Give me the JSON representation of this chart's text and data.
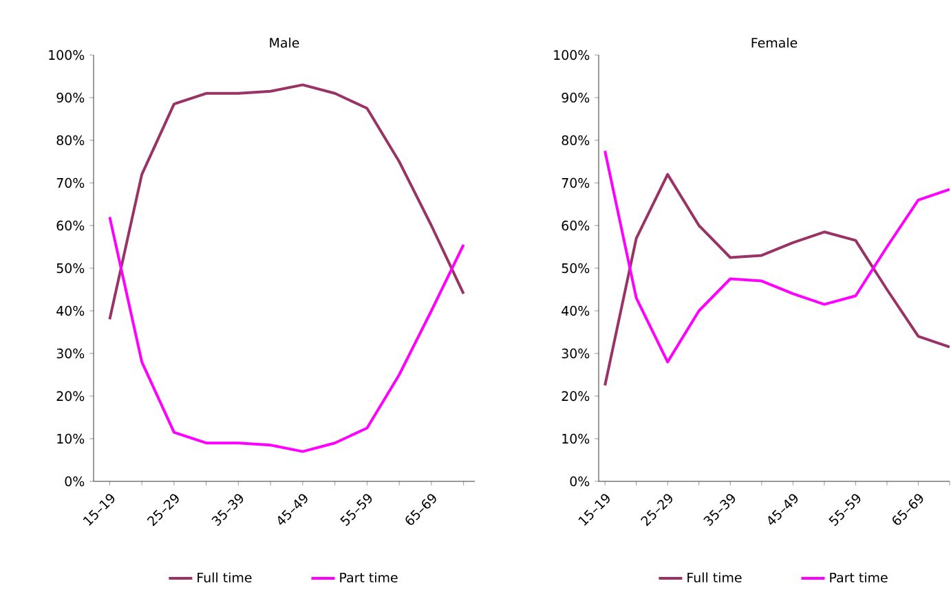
{
  "chart_data": [
    {
      "type": "line",
      "title": "Male",
      "categories": [
        "15–19",
        null,
        "25–29",
        null,
        "35–39",
        null,
        "45–49",
        null,
        "55–59",
        null,
        "65–69",
        null
      ],
      "series": [
        {
          "name": "Full time",
          "color": "#993366",
          "values": [
            38,
            72,
            88.5,
            91,
            91,
            91.5,
            93,
            91,
            87.5,
            75,
            60,
            44
          ]
        },
        {
          "name": "Part time",
          "color": "#ff00ff",
          "values": [
            62,
            28,
            11.5,
            9,
            9,
            8.5,
            7,
            9,
            12.5,
            25,
            40,
            55.5
          ]
        }
      ],
      "ylim": [
        0,
        100
      ],
      "yticks": [
        {
          "value": 0,
          "label": "0%"
        },
        {
          "value": 10,
          "label": "10%"
        },
        {
          "value": 20,
          "label": "20%"
        },
        {
          "value": 30,
          "label": "30%"
        },
        {
          "value": 40,
          "label": "40%"
        },
        {
          "value": 50,
          "label": "50%"
        },
        {
          "value": 60,
          "label": "60%"
        },
        {
          "value": 70,
          "label": "70%"
        },
        {
          "value": 80,
          "label": "80%"
        },
        {
          "value": 90,
          "label": "90%"
        },
        {
          "value": 100,
          "label": "100%"
        }
      ],
      "legend": "bottom"
    },
    {
      "type": "line",
      "title": "Female",
      "categories": [
        "15–19",
        null,
        "25–29",
        null,
        "35–39",
        null,
        "45–49",
        null,
        "55–59",
        null,
        "65–69",
        null
      ],
      "series": [
        {
          "name": "Full time",
          "color": "#993366",
          "values": [
            22.5,
            57,
            72,
            60,
            52.5,
            53,
            56,
            58.5,
            56.5,
            45,
            34,
            31.5
          ]
        },
        {
          "name": "Part time",
          "color": "#ff00ff",
          "values": [
            77.5,
            43,
            28,
            40,
            47.5,
            47,
            44,
            41.5,
            43.5,
            55,
            66,
            68.5
          ]
        }
      ],
      "ylim": [
        0,
        100
      ],
      "yticks": [
        {
          "value": 0,
          "label": "0%"
        },
        {
          "value": 10,
          "label": "10%"
        },
        {
          "value": 20,
          "label": "20%"
        },
        {
          "value": 30,
          "label": "30%"
        },
        {
          "value": 40,
          "label": "40%"
        },
        {
          "value": 50,
          "label": "50%"
        },
        {
          "value": 60,
          "label": "60%"
        },
        {
          "value": 70,
          "label": "70%"
        },
        {
          "value": 80,
          "label": "80%"
        },
        {
          "value": 90,
          "label": "90%"
        },
        {
          "value": 100,
          "label": "100%"
        }
      ],
      "legend": "bottom"
    }
  ]
}
